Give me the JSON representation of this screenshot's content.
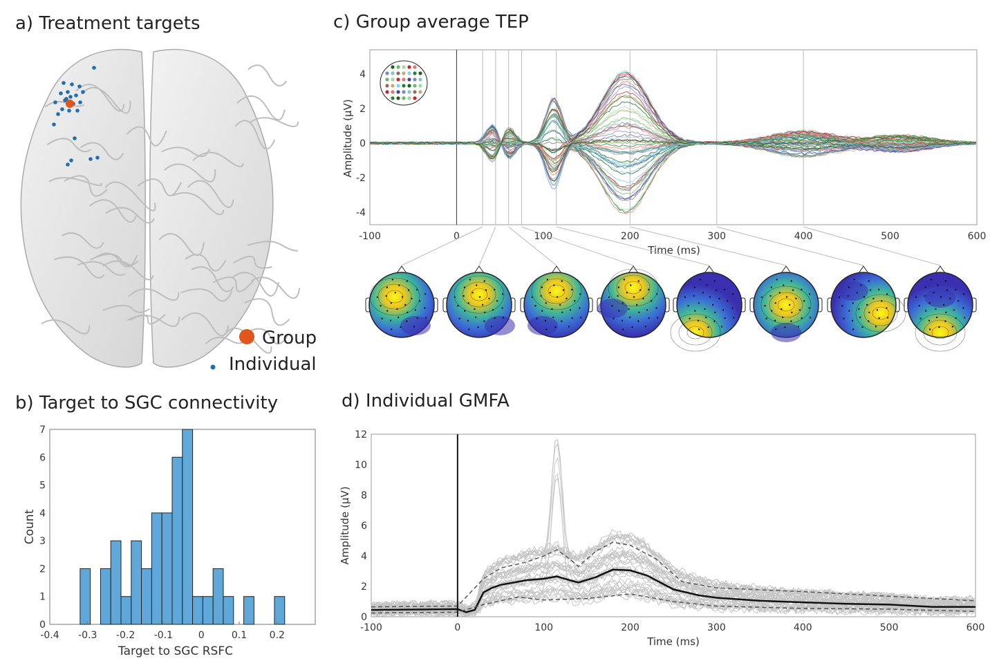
{
  "panels": {
    "a": {
      "title": "a) Treatment targets",
      "legend": [
        {
          "label": "Group",
          "color": "#e0561b"
        },
        {
          "label": "Individual",
          "color": "#1f6fb0"
        }
      ]
    },
    "b": {
      "title": "b) Target to SGC connectivity"
    },
    "c": {
      "title": "c) Group average TEP"
    },
    "d": {
      "title": "d) Individual GMFA"
    }
  },
  "chart_data": [
    {
      "id": "b",
      "type": "bar",
      "xlabel": "Target to SGC RSFC",
      "ylabel": "Count",
      "xlim": [
        -0.4,
        0.29
      ],
      "ylim": [
        0,
        7
      ],
      "xticks": [
        "-0.4",
        "-0.3",
        "-0.2",
        "-0.1",
        "0",
        "0.1",
        "0.2"
      ],
      "yticks": [
        "0",
        "1",
        "2",
        "3",
        "4",
        "5",
        "6",
        "7"
      ],
      "bin_start": -0.32,
      "bin_width": 0.027,
      "counts": [
        2,
        0,
        2,
        3,
        1,
        3,
        2,
        4,
        4,
        6,
        7,
        1,
        1,
        2,
        1,
        0,
        1,
        0,
        0,
        1
      ],
      "color": "#5fa8d9"
    },
    {
      "id": "c",
      "type": "line",
      "xlabel": "Time (ms)",
      "ylabel": "Amplitude (μV)",
      "xlim": [
        -100,
        600
      ],
      "ylim": [
        -4.8,
        5.4
      ],
      "xticks": [
        "-100",
        "0",
        "100",
        "200",
        "300",
        "400",
        "500",
        "600"
      ],
      "yticks": [
        "-4",
        "-2",
        "0",
        "2",
        "4"
      ],
      "topomap_times_ms": [
        30,
        45,
        60,
        75,
        115,
        200,
        300,
        400
      ],
      "channel_count": 62,
      "channel_colors": [
        "#2e7d32",
        "#1b5e20",
        "#66bb6a",
        "#a5d6a7",
        "#c62828",
        "#e57373",
        "#3949ab",
        "#7986cb",
        "#80cbc4",
        "#8d6e63",
        "#c5a880",
        "#90caf9"
      ]
    },
    {
      "id": "d",
      "type": "line",
      "xlabel": "Time (ms)",
      "ylabel": "Amplitude (μV)",
      "xlim": [
        -100,
        600
      ],
      "ylim": [
        0,
        12
      ],
      "xticks": [
        "-100",
        "0",
        "100",
        "200",
        "300",
        "400",
        "500",
        "600"
      ],
      "yticks": [
        "0",
        "2",
        "4",
        "6",
        "8",
        "10",
        "12"
      ],
      "series": [
        {
          "style": "mean",
          "x": [
            -100,
            0,
            10,
            20,
            30,
            40,
            50,
            70,
            80,
            100,
            115,
            130,
            140,
            160,
            180,
            200,
            220,
            250,
            280,
            300,
            350,
            400,
            450,
            500,
            550,
            600
          ],
          "y": [
            0.45,
            0.5,
            0.3,
            0.45,
            1.6,
            1.9,
            2.1,
            2.3,
            2.4,
            2.5,
            2.65,
            2.4,
            2.25,
            2.6,
            3.1,
            3.05,
            2.7,
            1.8,
            1.4,
            1.25,
            1.05,
            0.95,
            0.85,
            0.8,
            0.65,
            0.65
          ]
        },
        {
          "style": "upper-dashed",
          "x": [
            -100,
            0,
            30,
            50,
            80,
            100,
            115,
            130,
            140,
            160,
            180,
            200,
            230,
            260,
            300,
            400,
            500,
            600
          ],
          "y": [
            0.65,
            0.7,
            2.5,
            3.2,
            3.6,
            4.0,
            4.4,
            3.8,
            3.3,
            4.3,
            4.9,
            4.7,
            3.8,
            2.3,
            1.9,
            1.65,
            1.35,
            1.05
          ]
        },
        {
          "style": "lower-dashed",
          "x": [
            -100,
            0,
            30,
            70,
            100,
            150,
            200,
            250,
            300,
            400,
            500,
            600
          ],
          "y": [
            0.25,
            0.3,
            0.8,
            1.3,
            1.1,
            1.2,
            1.5,
            1.0,
            0.7,
            0.55,
            0.5,
            0.35
          ]
        }
      ],
      "individual_count": 40
    }
  ]
}
